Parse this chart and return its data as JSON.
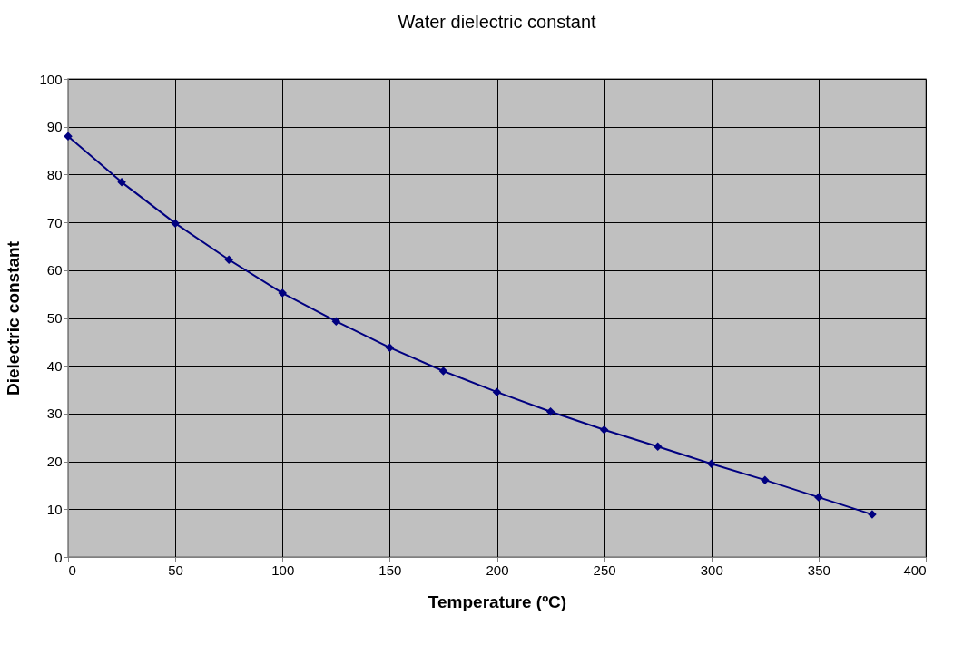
{
  "chart_data": {
    "type": "line",
    "title": "Water dielectric constant",
    "xlabel": "Temperature (ºC)",
    "ylabel": "Dielectric constant",
    "x": [
      0,
      25,
      50,
      75,
      100,
      125,
      150,
      175,
      200,
      225,
      250,
      275,
      300,
      325,
      350,
      375
    ],
    "series": [
      {
        "color": "#000080",
        "values": [
          88.0,
          78.4,
          69.8,
          62.2,
          55.2,
          49.3,
          43.8,
          38.9,
          34.5,
          30.4,
          26.6,
          23.1,
          19.5,
          16.1,
          12.5,
          8.9
        ]
      }
    ],
    "xlim": [
      0,
      400
    ],
    "xticks": [
      0,
      50,
      100,
      150,
      200,
      250,
      300,
      350,
      400
    ],
    "ylim": [
      0,
      100
    ],
    "yticks": [
      0,
      10,
      20,
      30,
      40,
      50,
      60,
      70,
      80,
      90,
      100
    ],
    "grid": true,
    "marker": "diamond",
    "line_style": "solid"
  }
}
